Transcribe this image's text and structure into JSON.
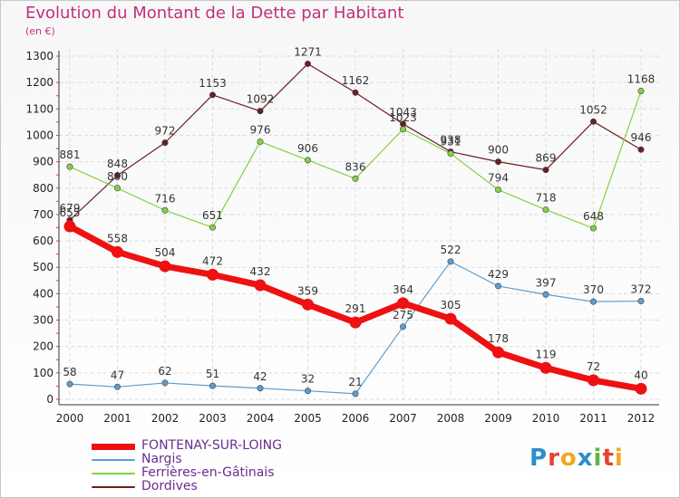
{
  "title": "Evolution du Montant de la Dette par Habitant",
  "unit": "(en €)",
  "logo": {
    "text": "Proxiti",
    "letters": [
      "P",
      "r",
      "o",
      "x",
      "i",
      "t",
      "i"
    ],
    "letter_colors": [
      "#2a8fc9",
      "#e2462f",
      "#f0a81f",
      "#2a8fc9",
      "#5bb840",
      "#e2462f",
      "#f0a81f"
    ]
  },
  "chart_data": {
    "type": "line",
    "categories": [
      "2000",
      "2001",
      "2002",
      "2003",
      "2004",
      "2005",
      "2006",
      "2007",
      "2008",
      "2009",
      "2010",
      "2011",
      "2012"
    ],
    "ylim": [
      0,
      1300
    ],
    "yticks": [
      0,
      100,
      200,
      300,
      400,
      500,
      600,
      700,
      800,
      900,
      1000,
      1100,
      1200,
      1300
    ],
    "grid": true,
    "legend_position": "bottom-left",
    "series": [
      {
        "name": "Dordives",
        "color": "#6b1f23",
        "width": 1.2,
        "marker_radius": 3.2,
        "values": [
          679,
          848,
          972,
          1153,
          1092,
          1271,
          1162,
          1043,
          938,
          900,
          869,
          1052,
          946
        ],
        "labels": [
          "679",
          "848",
          "972",
          "1153",
          "1092",
          "1271",
          "1162",
          "1043",
          "938",
          "900",
          "869",
          "1052",
          "946"
        ]
      },
      {
        "name": "Ferrières-en-Gâtinais",
        "color": "#82d243",
        "width": 1.2,
        "marker_radius": 3.2,
        "values": [
          881,
          800,
          716,
          651,
          976,
          906,
          836,
          1023,
          931,
          794,
          718,
          648,
          1168
        ],
        "labels": [
          "881",
          "800",
          "716",
          "651",
          "976",
          "906",
          "836",
          "1023",
          "931",
          "794",
          "718",
          "648",
          "1168"
        ]
      },
      {
        "name": "Nargis",
        "color": "#5f9ccc",
        "width": 1.2,
        "marker_radius": 3.2,
        "values": [
          58,
          47,
          62,
          51,
          42,
          32,
          21,
          275,
          522,
          429,
          397,
          370,
          372
        ],
        "labels": [
          "58",
          "47",
          "62",
          "51",
          "42",
          "32",
          "21",
          "275",
          "522",
          "429",
          "397",
          "370",
          "372"
        ]
      },
      {
        "name": "FONTENAY-SUR-LOING",
        "color": "#ee1111",
        "width": 7,
        "marker_radius": 6.5,
        "values": [
          655,
          558,
          504,
          472,
          432,
          359,
          291,
          364,
          305,
          178,
          119,
          72,
          40
        ],
        "labels": [
          "655",
          "558",
          "504",
          "472",
          "432",
          "359",
          "291",
          "364",
          "305",
          "178",
          "119",
          "72",
          "40"
        ]
      }
    ]
  },
  "legend": [
    {
      "label": "FONTENAY-SUR-LOING",
      "color": "#ee1111",
      "thickness": 7
    },
    {
      "label": "Nargis",
      "color": "#5f9ccc",
      "thickness": 2
    },
    {
      "label": "Ferrières-en-Gâtinais",
      "color": "#82d243",
      "thickness": 2
    },
    {
      "label": "Dordives",
      "color": "#6b1f23",
      "thickness": 2
    }
  ]
}
